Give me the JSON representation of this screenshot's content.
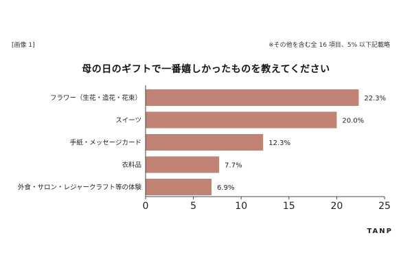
{
  "header": {
    "image_label": "[画像 1]",
    "footnote": "※その他を含む全 16 項目、5% 以下記載略"
  },
  "brand": {
    "name": "TANP"
  },
  "colors": {
    "bar": "#c18474",
    "axis": "#444444",
    "text": "#222222"
  },
  "chart_data": {
    "type": "bar",
    "orientation": "horizontal",
    "title": "母の日のギフトで一番嬉しかったものを教えてください",
    "categories": [
      "フラワー（生花・造花・花束）",
      "スイーツ",
      "手紙・メッセージカード",
      "衣料品",
      "外食・サロン・レジャークラフト等の体験"
    ],
    "values": [
      22.3,
      20.0,
      12.3,
      7.7,
      6.9
    ],
    "value_labels": [
      "22.3%",
      "20.0%",
      "12.3%",
      "7.7%",
      "6.9%"
    ],
    "xlim": [
      0,
      25
    ],
    "xticks": [
      0,
      5,
      10,
      15,
      20,
      25
    ],
    "xtick_labels": [
      "0",
      "5",
      "10",
      "15",
      "20",
      "25"
    ],
    "xlabel": "",
    "ylabel": "",
    "grid": false,
    "legend": "none"
  }
}
